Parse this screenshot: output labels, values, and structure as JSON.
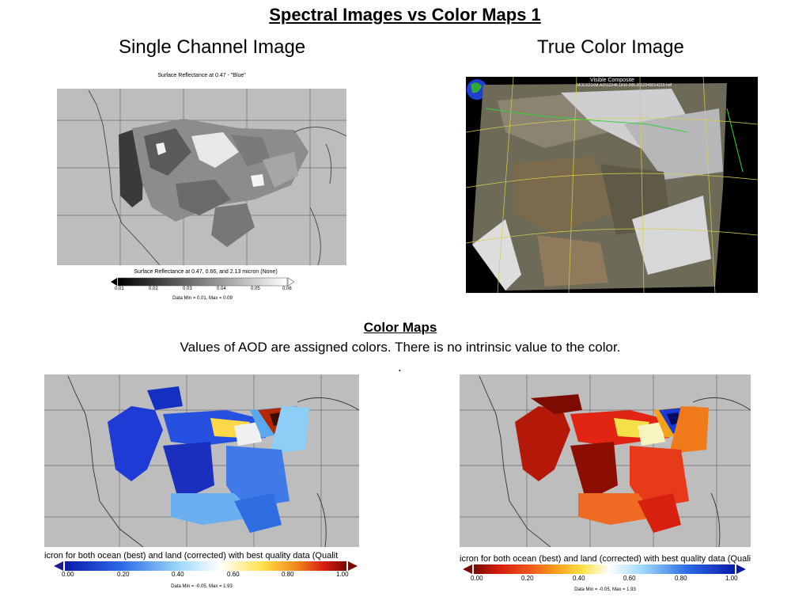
{
  "slide": {
    "title": "Spectral Images vs Color Maps  1",
    "left_heading": "Single Channel Image",
    "right_heading": "True Color Image"
  },
  "single_channel": {
    "map_title": "Surface Reflectance at 0.47 - \"Blue\"",
    "colorbar_title": "Surface Reflectance at 0.47, 0.66, and 2.13 micron (None)",
    "ticks": [
      "0.01",
      "0.02",
      "0.03",
      "0.04",
      "0.05",
      "0.06"
    ],
    "data_range": "Data Min = 0.01, Max = 0.09"
  },
  "true_color": {
    "caption_line1": "Visible Composite",
    "caption_line2": "MOD021KM.A2012248.1810.005.2012249014210.hdf"
  },
  "color_maps": {
    "heading": "Color Maps",
    "description": "Values of AOD are assigned colors.  There is no intrinsic value to the color.",
    "dot": ".",
    "left": {
      "colorbar_title": "icron for both ocean (best) and land (corrected) with best quality data (Qualit",
      "ticks": [
        "0.00",
        "0.20",
        "0.40",
        "0.60",
        "0.80",
        "1.00"
      ],
      "data_range": "Data Min = -0.05, Max = 1.93"
    },
    "right": {
      "colorbar_title": "icron for both ocean (best) and land (corrected) with best quality data (Quality",
      "ticks": [
        "0.00",
        "0.20",
        "0.40",
        "0.60",
        "0.80",
        "1.00"
      ],
      "data_range": "Data Min = -0.05, Max = 1.93"
    }
  }
}
